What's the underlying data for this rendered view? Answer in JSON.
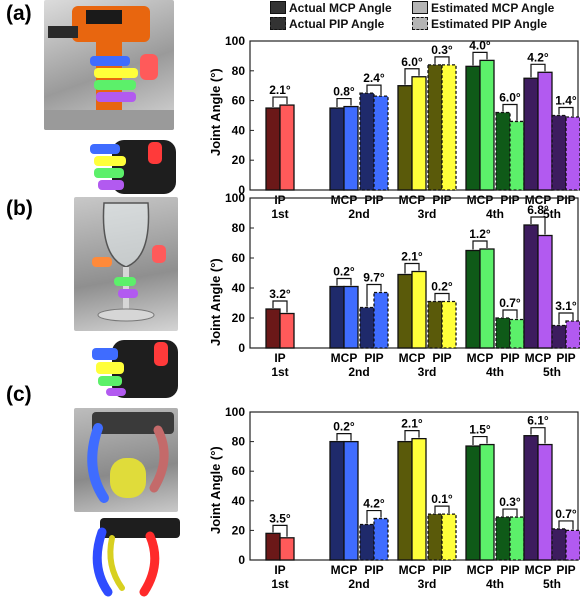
{
  "panels": [
    {
      "label": "(a)"
    },
    {
      "label": "(b)"
    },
    {
      "label": "(c)"
    }
  ],
  "legend": {
    "items": [
      {
        "name": "Actual MCP Angle",
        "style": "actual-mcp"
      },
      {
        "name": "Estimated MCP Angle",
        "style": "estimated-mcp"
      },
      {
        "name": "Actual PIP Angle",
        "style": "actual-pip"
      },
      {
        "name": "Estimated PIP Angle",
        "style": "estimated-pip"
      }
    ]
  },
  "colors": {
    "finger_dark": [
      "#6b1818",
      "#1f2a6b",
      "#5a5a0a",
      "#0f5a18",
      "#3d1c5e"
    ],
    "finger_light": [
      "#ff5a5a",
      "#3f6cff",
      "#ffff3a",
      "#5cf06a",
      "#b25af0"
    ]
  },
  "chart_data": [
    {
      "type": "bar",
      "ylabel": "Joint Angle (°)",
      "ylim": [
        0,
        100
      ],
      "yticks": [
        0,
        20,
        40,
        60,
        80,
        100
      ],
      "categories": [
        {
          "joints": [
            "IP"
          ],
          "finger": "1st"
        },
        {
          "joints": [
            "MCP",
            "PIP"
          ],
          "finger": "2nd"
        },
        {
          "joints": [
            "MCP",
            "PIP"
          ],
          "finger": "3rd"
        },
        {
          "joints": [
            "MCP",
            "PIP"
          ],
          "finger": "4th"
        },
        {
          "joints": [
            "MCP",
            "PIP"
          ],
          "finger": "5th"
        }
      ],
      "bars": [
        {
          "finger": 0,
          "joint": "IP",
          "actual": 55,
          "estimated": 57,
          "error": "2.1°"
        },
        {
          "finger": 1,
          "joint": "MCP",
          "actual": 55,
          "estimated": 56,
          "error": "0.8°"
        },
        {
          "finger": 1,
          "joint": "PIP",
          "actual": 65,
          "estimated": 63,
          "error": "2.4°"
        },
        {
          "finger": 2,
          "joint": "MCP",
          "actual": 70,
          "estimated": 76,
          "error": "6.0°"
        },
        {
          "finger": 2,
          "joint": "PIP",
          "actual": 84,
          "estimated": 84,
          "error": "0.3°"
        },
        {
          "finger": 3,
          "joint": "MCP",
          "actual": 83,
          "estimated": 87,
          "error": "4.0°"
        },
        {
          "finger": 3,
          "joint": "PIP",
          "actual": 52,
          "estimated": 46,
          "error": "6.0°"
        },
        {
          "finger": 4,
          "joint": "MCP",
          "actual": 75,
          "estimated": 79,
          "error": "4.2°"
        },
        {
          "finger": 4,
          "joint": "PIP",
          "actual": 50,
          "estimated": 49,
          "error": "1.4°"
        }
      ]
    },
    {
      "type": "bar",
      "ylabel": "Joint Angle (°)",
      "ylim": [
        0,
        100
      ],
      "yticks": [
        0,
        20,
        40,
        60,
        80,
        100
      ],
      "categories": [
        {
          "joints": [
            "IP"
          ],
          "finger": "1st"
        },
        {
          "joints": [
            "MCP",
            "PIP"
          ],
          "finger": "2nd"
        },
        {
          "joints": [
            "MCP",
            "PIP"
          ],
          "finger": "3rd"
        },
        {
          "joints": [
            "MCP",
            "PIP"
          ],
          "finger": "4th"
        },
        {
          "joints": [
            "MCP",
            "PIP"
          ],
          "finger": "5th"
        }
      ],
      "bars": [
        {
          "finger": 0,
          "joint": "IP",
          "actual": 26,
          "estimated": 23,
          "error": "3.2°"
        },
        {
          "finger": 1,
          "joint": "MCP",
          "actual": 41,
          "estimated": 41,
          "error": "0.2°"
        },
        {
          "finger": 1,
          "joint": "PIP",
          "actual": 27,
          "estimated": 37,
          "error": "9.7°"
        },
        {
          "finger": 2,
          "joint": "MCP",
          "actual": 49,
          "estimated": 51,
          "error": "2.1°"
        },
        {
          "finger": 2,
          "joint": "PIP",
          "actual": 31,
          "estimated": 31,
          "error": "0.2°"
        },
        {
          "finger": 3,
          "joint": "MCP",
          "actual": 65,
          "estimated": 66,
          "error": "1.2°"
        },
        {
          "finger": 3,
          "joint": "PIP",
          "actual": 20,
          "estimated": 19,
          "error": "0.7°"
        },
        {
          "finger": 4,
          "joint": "MCP",
          "actual": 82,
          "estimated": 75,
          "error": "6.8°"
        },
        {
          "finger": 4,
          "joint": "PIP",
          "actual": 15,
          "estimated": 18,
          "error": "3.1°"
        }
      ]
    },
    {
      "type": "bar",
      "ylabel": "Joint Angle (°)",
      "ylim": [
        0,
        100
      ],
      "yticks": [
        0,
        20,
        40,
        60,
        80,
        100
      ],
      "categories": [
        {
          "joints": [
            "IP"
          ],
          "finger": "1st"
        },
        {
          "joints": [
            "MCP",
            "PIP"
          ],
          "finger": "2nd"
        },
        {
          "joints": [
            "MCP",
            "PIP"
          ],
          "finger": "3rd"
        },
        {
          "joints": [
            "MCP",
            "PIP"
          ],
          "finger": "4th"
        },
        {
          "joints": [
            "MCP",
            "PIP"
          ],
          "finger": "5th"
        }
      ],
      "bars": [
        {
          "finger": 0,
          "joint": "IP",
          "actual": 18,
          "estimated": 15,
          "error": "3.5°"
        },
        {
          "finger": 1,
          "joint": "MCP",
          "actual": 80,
          "estimated": 80,
          "error": "0.2°"
        },
        {
          "finger": 1,
          "joint": "PIP",
          "actual": 24,
          "estimated": 28,
          "error": "4.2°"
        },
        {
          "finger": 2,
          "joint": "MCP",
          "actual": 80,
          "estimated": 82,
          "error": "2.1°"
        },
        {
          "finger": 2,
          "joint": "PIP",
          "actual": 31,
          "estimated": 31,
          "error": "0.1°"
        },
        {
          "finger": 3,
          "joint": "MCP",
          "actual": 77,
          "estimated": 78,
          "error": "1.5°"
        },
        {
          "finger": 3,
          "joint": "PIP",
          "actual": 29,
          "estimated": 29,
          "error": "0.3°"
        },
        {
          "finger": 4,
          "joint": "MCP",
          "actual": 84,
          "estimated": 78,
          "error": "6.1°"
        },
        {
          "finger": 4,
          "joint": "PIP",
          "actual": 21,
          "estimated": 20,
          "error": "0.7°"
        }
      ]
    }
  ]
}
